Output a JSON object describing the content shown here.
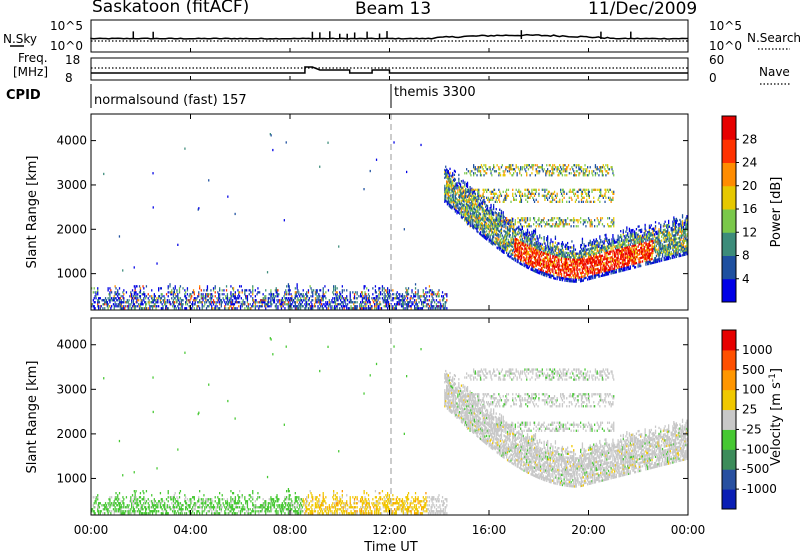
{
  "header": {
    "station": "Saskatoon (fitACF)",
    "beam": "Beam 13",
    "date": "11/Dec/2009"
  },
  "noise_panel": {
    "left_label": "N.Sky",
    "right_label": "N.Search",
    "left_ticks": [
      "10^5",
      "10^0"
    ],
    "right_ticks": [
      "10^5",
      "10^0"
    ],
    "sky_spike_times_h": [
      1.7,
      2.5,
      8.9,
      9.2,
      9.6,
      10.0,
      10.3,
      10.6,
      11.1,
      11.6,
      11.9,
      17.3,
      20.5,
      21.7
    ]
  },
  "freq_panel": {
    "left_label_1": "Freq.",
    "left_label_2": "[MHz]",
    "right_label": "Nave",
    "left_ticks": [
      "18",
      "8"
    ],
    "right_ticks": [
      "60",
      "0"
    ],
    "cpid_label": "CPID",
    "programs": [
      {
        "start_h": 0,
        "label": "normalsound (fast) 157"
      },
      {
        "start_h": 12,
        "label": "themis 3300"
      }
    ]
  },
  "power_panel": {
    "ylabel": "Slant Range [km]",
    "yticks": [
      1000,
      2000,
      3000,
      4000
    ],
    "ylim": [
      180,
      4600
    ],
    "colorbar_label": "Power [dB]",
    "colorbar_ticks": [
      "4",
      "8",
      "12",
      "16",
      "20",
      "24",
      "28"
    ],
    "colorbar_colors": [
      "#0000e6",
      "#1e50a0",
      "#3c8c7a",
      "#7ac84a",
      "#e6c800",
      "#ff8c00",
      "#ff3200",
      "#e60000"
    ]
  },
  "velocity_panel": {
    "ylabel": "Slant Range [km]",
    "yticks": [
      1000,
      2000,
      3000,
      4000
    ],
    "ylim": [
      180,
      4600
    ],
    "colorbar_label": "Velocity [m s^-1]",
    "colorbar_ticks": [
      "1000",
      "500",
      "100",
      "25",
      "-25",
      "-100",
      "-500",
      "-1000"
    ],
    "colorbar_colors": [
      "#0a1eb4",
      "#2850a0",
      "#3c8c5a",
      "#46c832",
      "#c8c8c8",
      "#f0c800",
      "#ff9600",
      "#ff5000",
      "#e60000"
    ]
  },
  "x_axis": {
    "label": "Time UT",
    "ticks": [
      "00:00",
      "04:00",
      "08:00",
      "12:00",
      "16:00",
      "20:00",
      "00:00"
    ],
    "xlim_h": [
      0,
      24
    ]
  },
  "chart_data": {
    "type": "heatmap",
    "title": "Saskatoon (fitACF) Beam 13 11/Dec/2009",
    "xlabel": "Time UT",
    "ylabel": "Slant Range [km]",
    "xlim_h": [
      0,
      24
    ],
    "ylim_km": [
      180,
      4600
    ],
    "scatter_regions": [
      {
        "name": "near-range ground scatter",
        "t_h": [
          0,
          14.3
        ],
        "range_km": [
          180,
          700
        ],
        "power_db": [
          4,
          28
        ],
        "velocity_ms": [
          -100,
          100
        ]
      },
      {
        "name": "far-range ionospheric scatter",
        "t_h": [
          14.2,
          24
        ],
        "range_km": [
          900,
          3500
        ],
        "power_db": [
          4,
          28
        ],
        "velocity_ms": [
          -25,
          25
        ]
      },
      {
        "name": "peak power arc",
        "t_h": [
          17,
          22.5
        ],
        "range_km": [
          900,
          1700
        ],
        "power_db": [
          20,
          28
        ],
        "velocity_ms": [
          -25,
          25
        ]
      }
    ],
    "reference_line_h": 12,
    "grid": false
  }
}
